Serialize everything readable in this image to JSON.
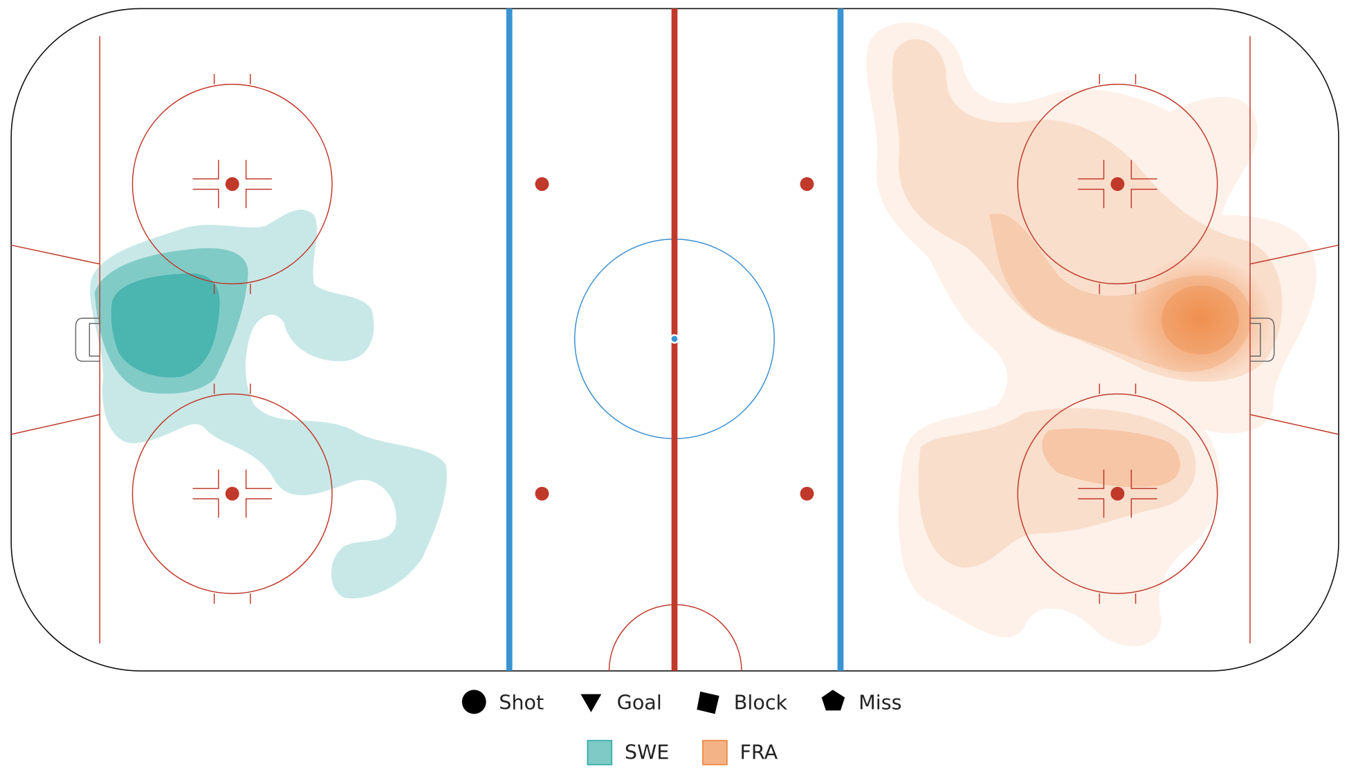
{
  "legend": {
    "markers": [
      "Shot",
      "Goal",
      "Block",
      "Miss"
    ],
    "teams": [
      {
        "name": "SWE",
        "color": "#3aaea8"
      },
      {
        "name": "FRA",
        "color": "#ee8a46"
      }
    ]
  }
}
